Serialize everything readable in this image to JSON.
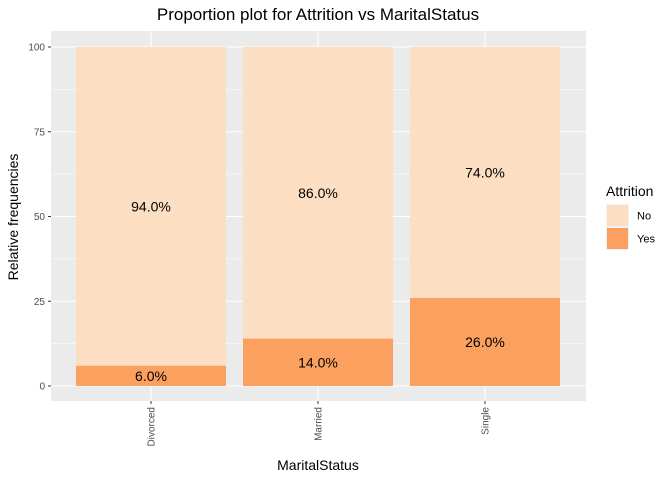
{
  "chart_data": {
    "type": "bar",
    "stacked": true,
    "title": "Proportion plot for Attrition vs MaritalStatus",
    "xlabel": "MaritalStatus",
    "ylabel": "Relative frequencies",
    "categories": [
      "Divorced",
      "Married",
      "Single"
    ],
    "series": [
      {
        "name": "Yes",
        "values": [
          6.0,
          14.0,
          26.0
        ],
        "labels": [
          "6.0%",
          "14.0%",
          "26.0%"
        ],
        "color": "#FBA05E"
      },
      {
        "name": "No",
        "values": [
          94.0,
          86.0,
          74.0
        ],
        "labels": [
          "94.0%",
          "86.0%",
          "74.0%"
        ],
        "color": "#FCDFC3"
      }
    ],
    "ylim": [
      0,
      100
    ],
    "yticks": [
      0,
      25,
      50,
      75,
      100
    ],
    "ytick_labels": [
      "0",
      "25",
      "50",
      "75",
      "100"
    ],
    "grid": true,
    "legend": {
      "title": "Attrition",
      "position": "right",
      "entries": [
        {
          "label": "No",
          "color": "#FCDFC3"
        },
        {
          "label": "Yes",
          "color": "#FBA05E"
        }
      ]
    },
    "panel_background": "#EBEBEB",
    "grid_color": "#FFFFFF"
  }
}
